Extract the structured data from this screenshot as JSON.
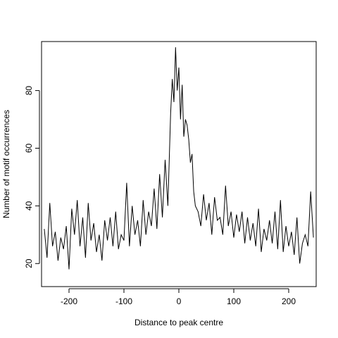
{
  "chart_data": {
    "type": "line",
    "title": "",
    "xlabel": "Distance to peak centre",
    "ylabel": "Number of motif occurrences",
    "xlim": [
      -250,
      250
    ],
    "ylim": [
      12,
      97
    ],
    "xticks": [
      -200,
      -100,
      0,
      100,
      200
    ],
    "yticks": [
      20,
      40,
      60,
      80
    ],
    "grid": false,
    "legend": "none",
    "line_color": "#000000",
    "series": [
      {
        "x": [
          -245,
          -240,
          -235,
          -230,
          -225,
          -220,
          -215,
          -210,
          -205,
          -200,
          -195,
          -190,
          -185,
          -180,
          -175,
          -170,
          -165,
          -160,
          -155,
          -150,
          -145,
          -140,
          -135,
          -130,
          -125,
          -120,
          -115,
          -110,
          -105,
          -100,
          -95,
          -90,
          -85,
          -80,
          -75,
          -70,
          -65,
          -60,
          -55,
          -50,
          -45,
          -40,
          -35,
          -30,
          -25,
          -20,
          -15,
          -12,
          -9,
          -6,
          -3,
          0,
          3,
          6,
          9,
          12,
          15,
          18,
          21,
          24,
          27,
          30,
          35,
          40,
          45,
          50,
          55,
          60,
          65,
          70,
          75,
          80,
          85,
          90,
          95,
          100,
          105,
          110,
          115,
          120,
          125,
          130,
          135,
          140,
          145,
          150,
          155,
          160,
          165,
          170,
          175,
          180,
          185,
          190,
          195,
          200,
          205,
          210,
          215,
          220,
          225,
          230,
          235,
          240,
          245
        ],
        "values": [
          32,
          22,
          41,
          26,
          31,
          21,
          29,
          25,
          33,
          18,
          39,
          30,
          42,
          26,
          36,
          22,
          41,
          28,
          34,
          24,
          30,
          21,
          35,
          28,
          36,
          26,
          38,
          25,
          30,
          28,
          48,
          26,
          40,
          30,
          35,
          26,
          42,
          30,
          38,
          33,
          46,
          32,
          51,
          36,
          56,
          40,
          72,
          84,
          76,
          95,
          80,
          88,
          70,
          82,
          64,
          70,
          68,
          63,
          55,
          58,
          45,
          40,
          38,
          33,
          44,
          35,
          41,
          30,
          43,
          35,
          36,
          30,
          47,
          33,
          38,
          29,
          37,
          31,
          38,
          27,
          36,
          28,
          34,
          26,
          39,
          24,
          32,
          28,
          35,
          27,
          38,
          25,
          42,
          24,
          33,
          26,
          31,
          23,
          36,
          20,
          27,
          30,
          26,
          45,
          29
        ]
      }
    ]
  }
}
